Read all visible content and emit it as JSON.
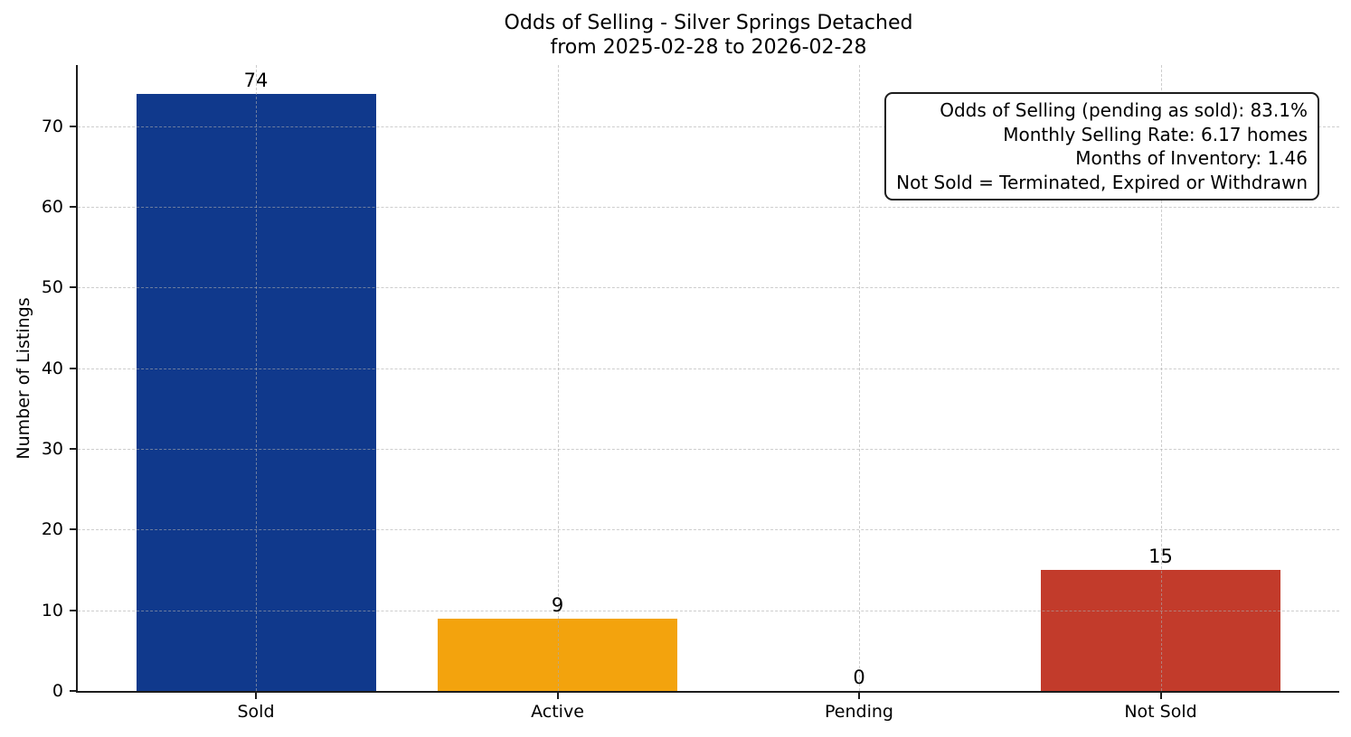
{
  "chart_data": {
    "type": "bar",
    "title": "Odds of Selling - Silver Springs Detached",
    "subtitle": "from 2025-02-28 to 2026-02-28",
    "ylabel": "Number of Listings",
    "xlabel": "",
    "categories": [
      "Sold",
      "Active",
      "Pending",
      "Not Sold"
    ],
    "values": [
      74,
      9,
      0,
      15
    ],
    "value_labels": [
      "74",
      "9",
      "0",
      "15"
    ],
    "bar_colors": [
      "#10398c",
      "#f3a30d",
      "#808080",
      "#c23b2b"
    ],
    "yticks": [
      0,
      10,
      20,
      30,
      40,
      50,
      60,
      70
    ],
    "ylim": [
      0,
      77.6
    ],
    "grid": true,
    "grid_style": "dashed",
    "legend_position": "none",
    "annotation": {
      "lines": [
        "Odds of Selling (pending as sold): 83.1%",
        "Monthly Selling Rate: 6.17 homes",
        "Months of Inventory: 1.46",
        "Not Sold = Terminated, Expired or Withdrawn"
      ]
    },
    "colors": {
      "background": "#ffffff",
      "text": "#000000",
      "spine": "#1c1c1c",
      "grid": "#acacac"
    }
  }
}
